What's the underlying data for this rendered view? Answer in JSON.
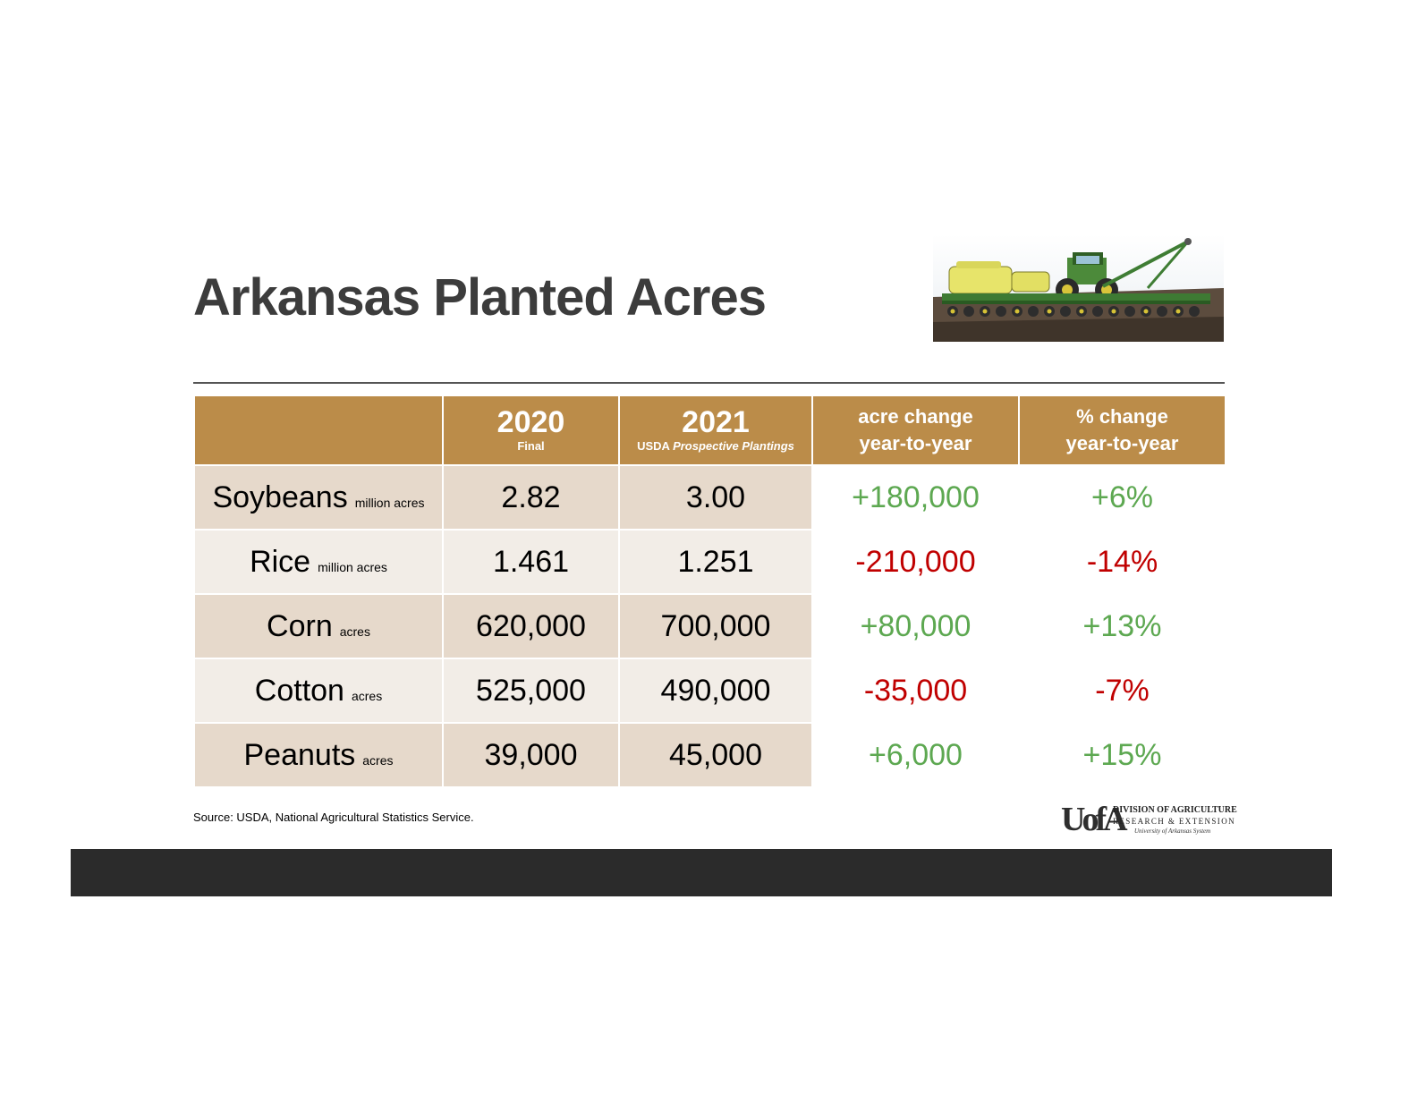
{
  "title": "Arkansas Planted Acres",
  "photo_icon": "tractor-planter-photo",
  "table": {
    "headers": [
      {
        "main": "",
        "sub": ""
      },
      {
        "main": "2020",
        "sub": "Final"
      },
      {
        "main": "2021",
        "sub_plain": "USDA ",
        "sub_italic": "Prospective Plantings"
      },
      {
        "line1": "acre change",
        "line2": "year-to-year"
      },
      {
        "line1": "% change",
        "line2": "year-to-year"
      }
    ],
    "rows": [
      {
        "crop": "Soybeans",
        "unit": "million acres",
        "y2020": "2.82",
        "y2021": "3.00",
        "acre_change": "+180,000",
        "pct_change": "+6%",
        "direction": "up"
      },
      {
        "crop": "Rice",
        "unit": "million acres",
        "y2020": "1.461",
        "y2021": "1.251",
        "acre_change": "-210,000",
        "pct_change": "-14%",
        "direction": "down"
      },
      {
        "crop": "Corn",
        "unit": "acres",
        "y2020": "620,000",
        "y2021": "700,000",
        "acre_change": "+80,000",
        "pct_change": "+13%",
        "direction": "up"
      },
      {
        "crop": "Cotton",
        "unit": "acres",
        "y2020": "525,000",
        "y2021": "490,000",
        "acre_change": "-35,000",
        "pct_change": "-7%",
        "direction": "down"
      },
      {
        "crop": "Peanuts",
        "unit": "acres",
        "y2020": "39,000",
        "y2021": "45,000",
        "acre_change": "+6,000",
        "pct_change": "+15%",
        "direction": "up"
      }
    ]
  },
  "source": "Source:  USDA, National Agricultural Statistics Service.",
  "logo": {
    "mark": "UofA",
    "line1": "DIVISION OF AGRICULTURE",
    "line2": "RESEARCH & EXTENSION",
    "line3": "University of Arkansas System"
  },
  "colors": {
    "header_bg": "#bb8c49",
    "row_dark": "#e6d9cb",
    "row_light": "#f2ede7",
    "positive": "#5da851",
    "negative": "#c00000",
    "title": "#3c3c3c",
    "footer_bar": "#2b2b2b"
  }
}
